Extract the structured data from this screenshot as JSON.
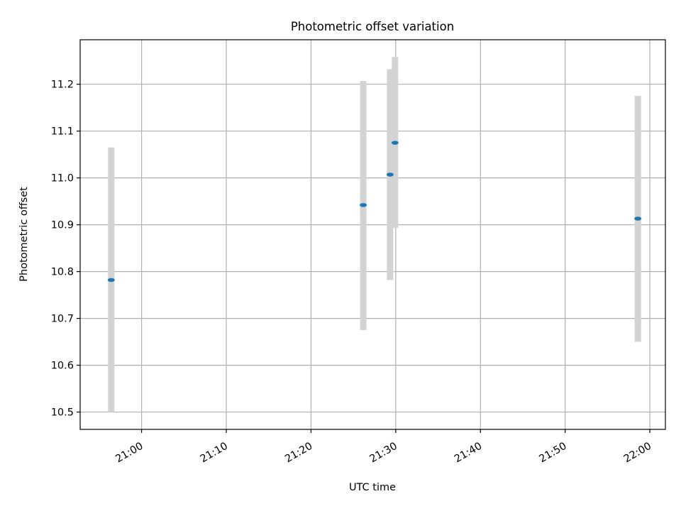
{
  "chart_data": {
    "type": "scatter",
    "title": "Photometric offset variation",
    "xlabel": "UTC time",
    "ylabel": "Photometric offset",
    "xlim": [
      "20:52:45",
      "22:01:50"
    ],
    "ylim": [
      10.463,
      11.295
    ],
    "xticks": [
      "21:00",
      "21:10",
      "21:20",
      "21:30",
      "21:40",
      "21:50",
      "22:00"
    ],
    "yticks": [
      "10.5",
      "10.6",
      "10.7",
      "10.8",
      "10.9",
      "11.0",
      "11.1",
      "11.2"
    ],
    "grid": true,
    "points": [
      {
        "x": "20:56:25",
        "y": 10.782,
        "yerr_low": 10.5,
        "yerr_high": 11.065
      },
      {
        "x": "21:26:10",
        "y": 10.942,
        "yerr_low": 10.675,
        "yerr_high": 11.207
      },
      {
        "x": "21:29:20",
        "y": 11.007,
        "yerr_low": 10.782,
        "yerr_high": 11.232
      },
      {
        "x": "21:29:55",
        "y": 11.075,
        "yerr_low": 10.893,
        "yerr_high": 11.258
      },
      {
        "x": "21:58:35",
        "y": 10.913,
        "yerr_low": 10.65,
        "yerr_high": 11.175
      }
    ],
    "colors": {
      "marker": "#1f77b4",
      "errorbar": "#d3d3d3",
      "grid": "#b0b0b0"
    }
  }
}
